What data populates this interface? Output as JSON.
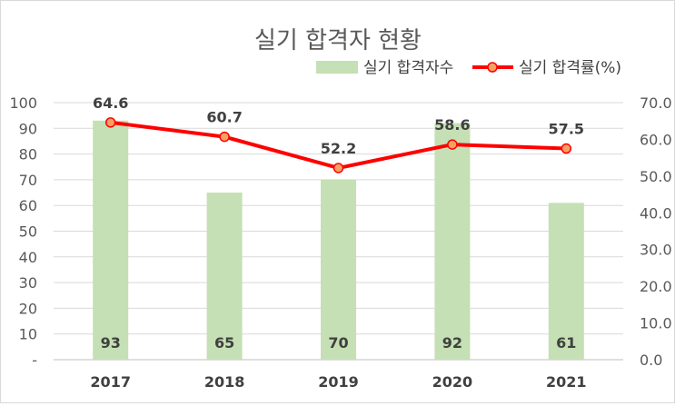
{
  "chart_data": {
    "type": "bar",
    "title": "실기 합격자 현황",
    "categories": [
      "2017",
      "2018",
      "2019",
      "2020",
      "2021"
    ],
    "series": [
      {
        "name": "실기 합격자수",
        "kind": "bar",
        "axis": "left",
        "color": "#c5e0b4",
        "values": [
          93,
          65,
          70,
          92,
          61
        ]
      },
      {
        "name": "실기 합격률(%)",
        "kind": "line",
        "axis": "right",
        "color": "#ff0000",
        "marker_color": "#f4a261",
        "values": [
          64.6,
          60.7,
          52.2,
          58.6,
          57.5
        ]
      }
    ],
    "y_left": {
      "min": 0,
      "max": 100,
      "step": 10,
      "tick_labels": [
        "-",
        "10",
        "20",
        "30",
        "40",
        "50",
        "60",
        "70",
        "80",
        "90",
        "100"
      ]
    },
    "y_right": {
      "min": 0,
      "max": 70,
      "step": 10,
      "tick_labels": [
        "0.0",
        "10.0",
        "20.0",
        "30.0",
        "40.0",
        "50.0",
        "60.0",
        "70.0"
      ]
    },
    "grid": true,
    "legend_position": "top-right"
  }
}
